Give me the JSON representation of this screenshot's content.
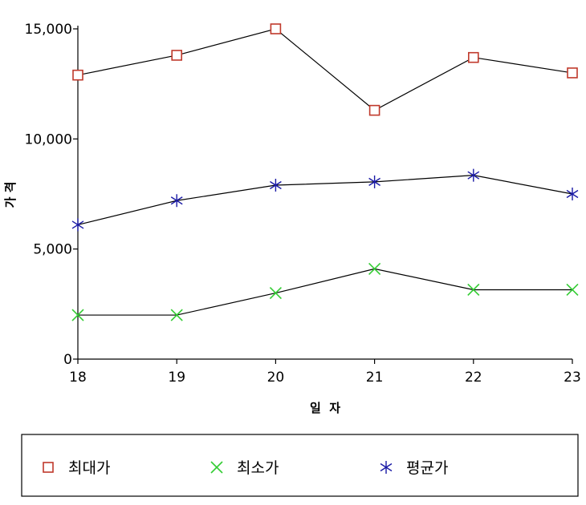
{
  "chart_data": {
    "type": "line",
    "title": "",
    "xlabel": "일  자",
    "ylabel": "가 격",
    "x": [
      "18",
      "19",
      "20",
      "21",
      "22",
      "23"
    ],
    "ylim": [
      0,
      15000
    ],
    "yticks": [
      "0",
      "5,000",
      "10,000",
      "15,000"
    ],
    "ytick_values": [
      0,
      5000,
      10000,
      15000
    ],
    "grid": false,
    "legend_position": "bottom",
    "series": [
      {
        "name": "최대가",
        "values": [
          12900,
          13800,
          15000,
          11300,
          13700,
          13000
        ],
        "marker": "square",
        "color": "#c0392b"
      },
      {
        "name": "최소가",
        "values": [
          2000,
          2000,
          3000,
          4100,
          3150,
          3150
        ],
        "marker": "x",
        "color": "#33cc33"
      },
      {
        "name": "평균가",
        "values": [
          6100,
          7200,
          7900,
          8050,
          8350,
          7500
        ],
        "marker": "asterisk",
        "color": "#1a1aa6"
      }
    ]
  }
}
